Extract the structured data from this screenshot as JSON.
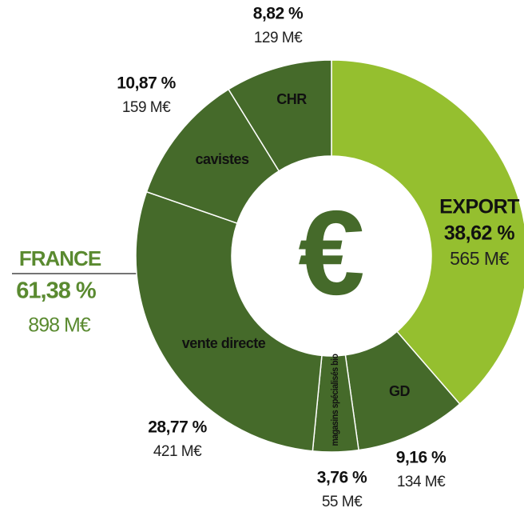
{
  "chart_data": {
    "type": "donut",
    "categories": [
      "EXPORT",
      "GD",
      "magasins spécialisés bio",
      "vente directe",
      "cavistes",
      "CHR"
    ],
    "values": [
      38.62,
      9.16,
      3.76,
      28.77,
      10.87,
      8.82
    ],
    "value_labels": [
      "38,62 %",
      "9,16 %",
      "3,76 %",
      "28,77 %",
      "10,87 %",
      "8,82 %"
    ],
    "amounts": [
      565,
      134,
      55,
      421,
      159,
      129
    ],
    "amount_labels": [
      "565 M€",
      "134 M€",
      "55 M€",
      "421 M€",
      "159 M€",
      "129 M€"
    ],
    "colors": [
      "#95bf2f",
      "#456a2a",
      "#456a2a",
      "#456a2a",
      "#456a2a",
      "#456a2a"
    ],
    "center_label": "€",
    "group": {
      "label": "FRANCE",
      "value": 61.38,
      "value_label": "61,38 %",
      "amount": 898,
      "amount_label": "898 M€"
    }
  }
}
